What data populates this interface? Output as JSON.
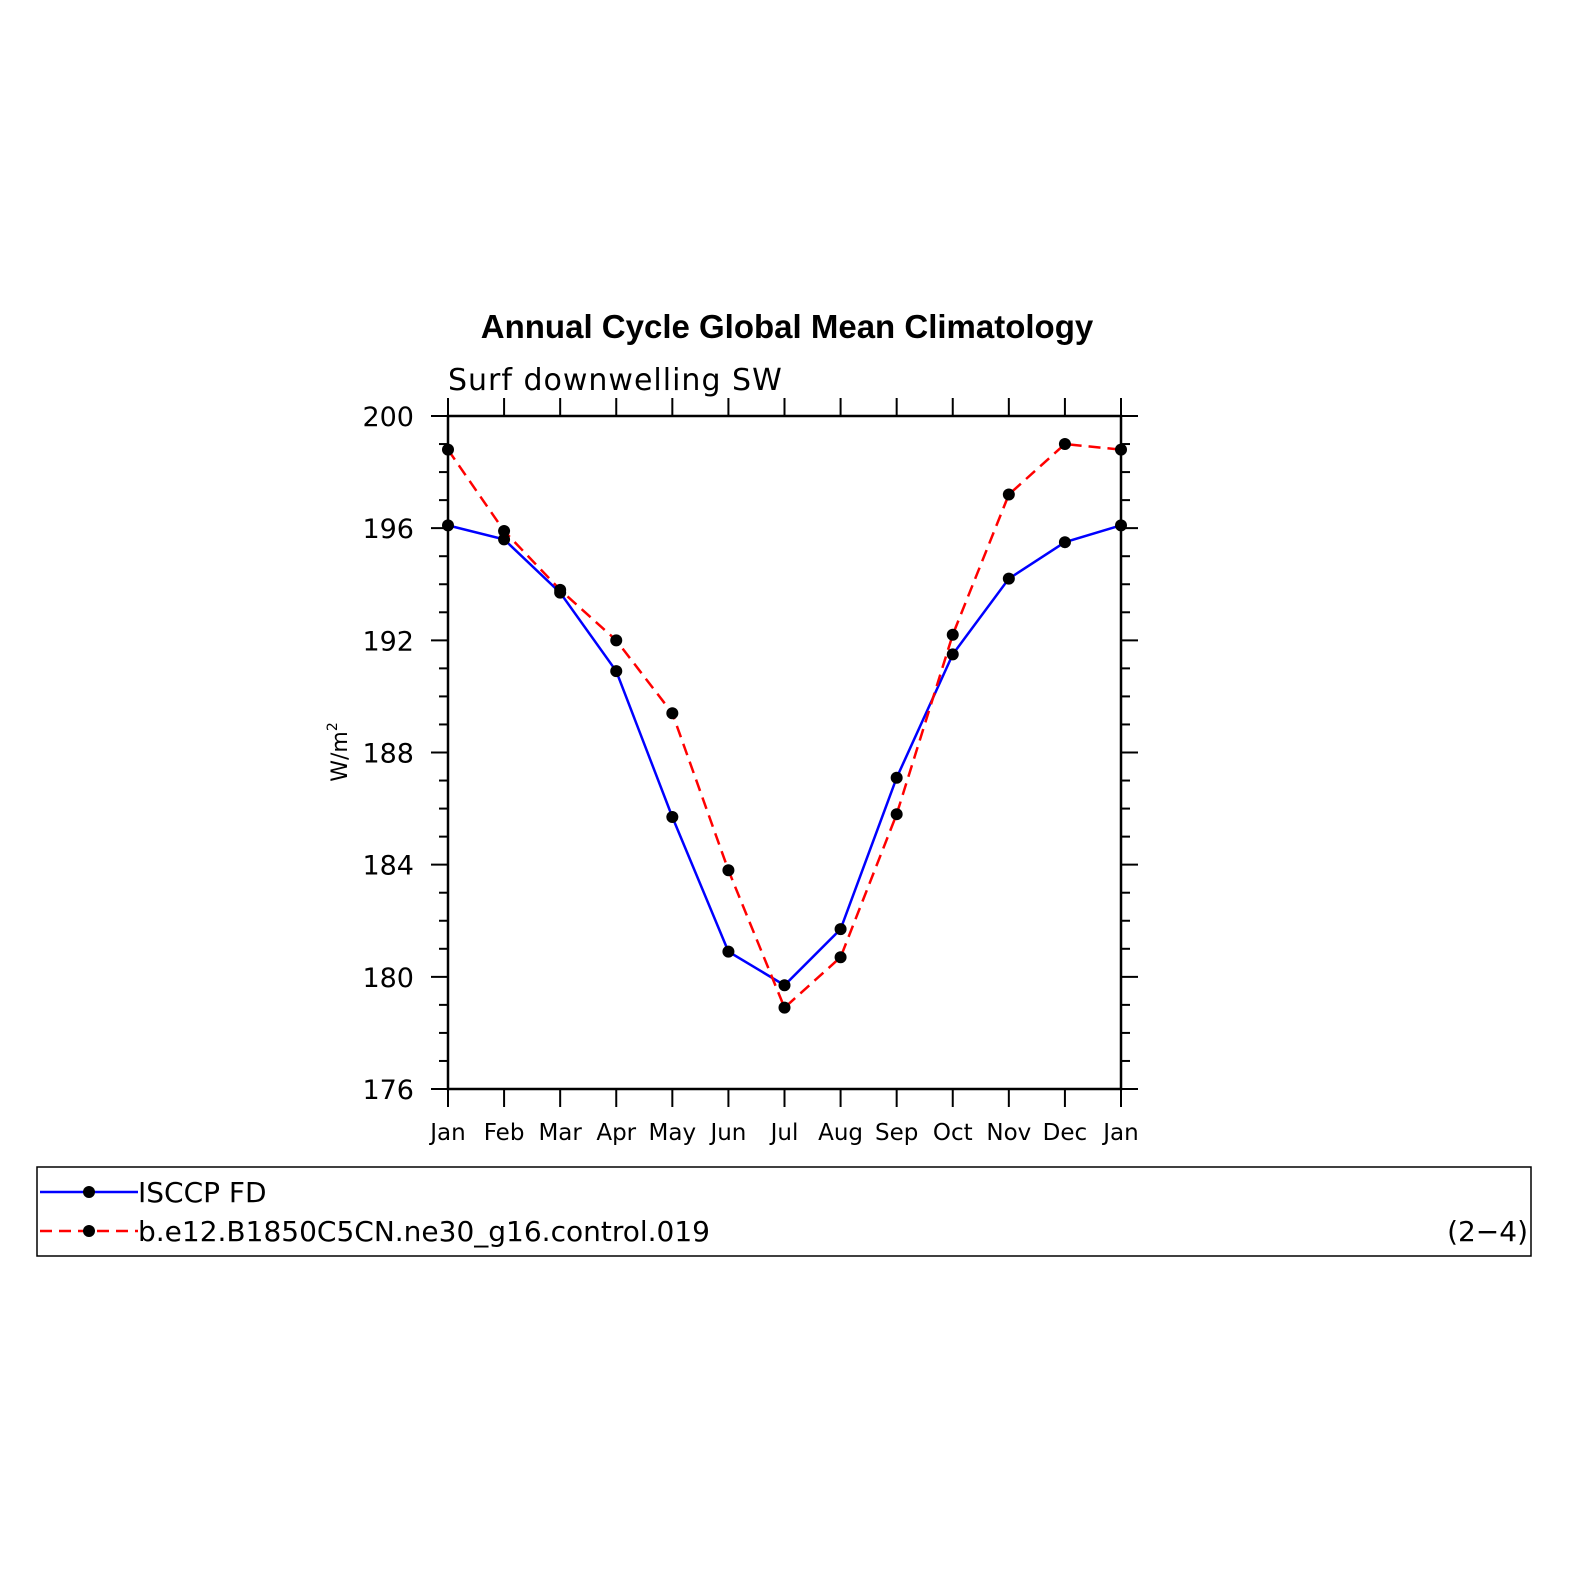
{
  "chart_data": {
    "type": "line",
    "title": "Annual Cycle Global Mean Climatology",
    "subtitle": "Surf downwelling SW",
    "ylabel": "W/m",
    "ylabel_superscript": "2",
    "categories": [
      "Jan",
      "Feb",
      "Mar",
      "Apr",
      "May",
      "Jun",
      "Jul",
      "Aug",
      "Sep",
      "Oct",
      "Nov",
      "Dec",
      "Jan"
    ],
    "ylim": [
      176,
      200
    ],
    "yticks": [
      176,
      180,
      184,
      188,
      192,
      196,
      200
    ],
    "series": [
      {
        "name": "ISCCP FD",
        "color": "#0000ff",
        "dash": "solid",
        "values": [
          196.1,
          195.6,
          193.7,
          190.9,
          185.7,
          180.9,
          179.7,
          181.7,
          187.1,
          191.5,
          194.2,
          195.5,
          196.1
        ]
      },
      {
        "name": "b.e12.B1850C5CN.ne30_g16.control.019",
        "color": "#ff0000",
        "dash": "dashed",
        "values": [
          198.8,
          195.9,
          193.8,
          192.0,
          189.4,
          183.8,
          178.9,
          180.7,
          185.8,
          192.2,
          197.2,
          199.0,
          198.8
        ]
      }
    ],
    "legend_position": "bottom",
    "panel_label": "(2−4)"
  }
}
